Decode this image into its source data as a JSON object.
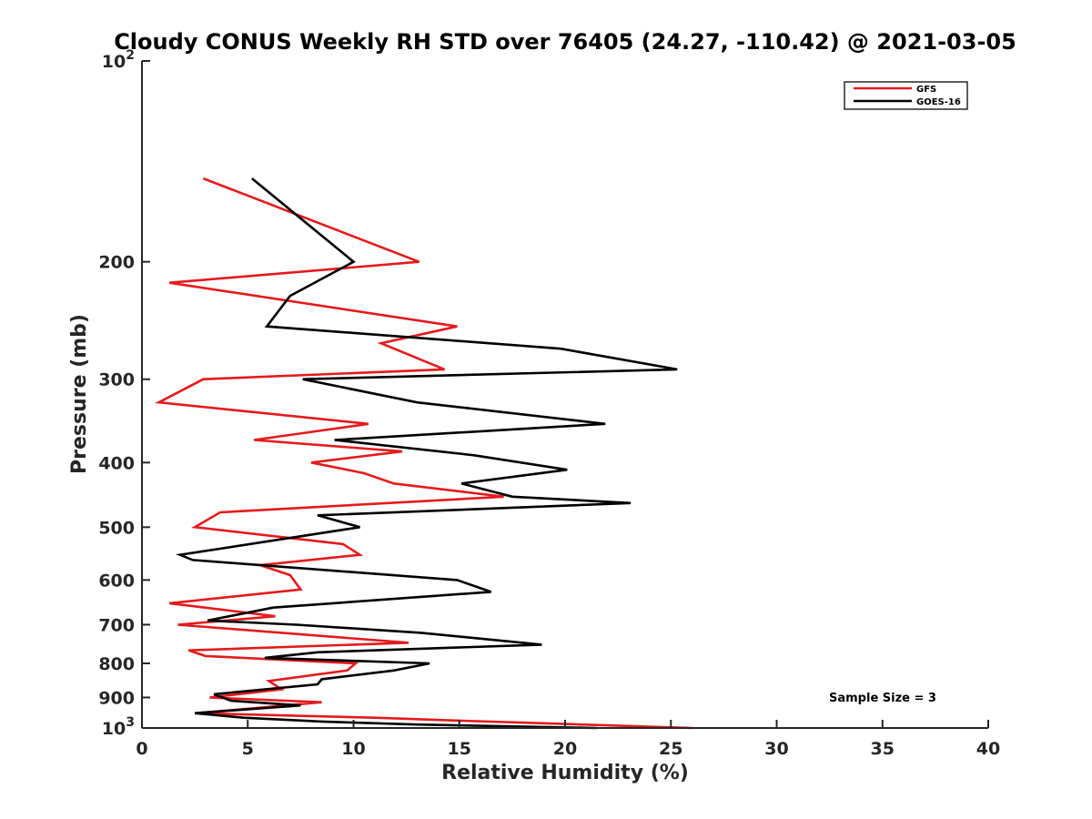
{
  "chart_data": {
    "type": "line",
    "title": "Cloudy CONUS Weekly RH STD over 76405 (24.27, -110.42) @ 2021-03-05",
    "xlabel": "Relative Humidity (%)",
    "ylabel": "Pressure (mb)",
    "xlim": [
      0,
      40
    ],
    "ylim": [
      100,
      1000
    ],
    "y_scale": "log",
    "y_inverted": true,
    "x_ticks": [
      "0",
      "5",
      "10",
      "15",
      "20",
      "25",
      "30",
      "35",
      "40"
    ],
    "y_ticks": [
      {
        "value": 100,
        "base": "10",
        "exp": "2"
      },
      {
        "value": 200,
        "label": "200"
      },
      {
        "value": 300,
        "label": "300"
      },
      {
        "value": 400,
        "label": "400"
      },
      {
        "value": 500,
        "label": "500"
      },
      {
        "value": 600,
        "label": "600"
      },
      {
        "value": 700,
        "label": "700"
      },
      {
        "value": 800,
        "label": "800"
      },
      {
        "value": 900,
        "label": "900"
      },
      {
        "value": 1000,
        "base": "10",
        "exp": "3"
      }
    ],
    "grid": false,
    "legend_position": "top-right",
    "annotation": "Sample Size = 3",
    "series": [
      {
        "name": "GFS",
        "color": "#e41a1c",
        "points": [
          [
            2.9,
            150
          ],
          [
            13.1,
            200
          ],
          [
            1.3,
            215
          ],
          [
            14.9,
            250
          ],
          [
            11.3,
            265
          ],
          [
            14.3,
            290
          ],
          [
            2.9,
            300
          ],
          [
            0.8,
            325
          ],
          [
            10.7,
            350
          ],
          [
            5.3,
            370
          ],
          [
            12.3,
            385
          ],
          [
            8.0,
            400
          ],
          [
            10.5,
            415
          ],
          [
            11.9,
            430
          ],
          [
            17.1,
            450
          ],
          [
            3.7,
            475
          ],
          [
            2.5,
            500
          ],
          [
            9.5,
            530
          ],
          [
            10.3,
            550
          ],
          [
            5.6,
            570
          ],
          [
            7.0,
            590
          ],
          [
            7.5,
            620
          ],
          [
            1.3,
            650
          ],
          [
            6.3,
            680
          ],
          [
            1.7,
            700
          ],
          [
            12.6,
            745
          ],
          [
            2.2,
            765
          ],
          [
            3.0,
            780
          ],
          [
            10.1,
            800
          ],
          [
            9.7,
            820
          ],
          [
            6.0,
            850
          ],
          [
            6.6,
            875
          ],
          [
            3.2,
            900
          ],
          [
            8.5,
            915
          ],
          [
            2.6,
            950
          ],
          [
            11.0,
            965
          ],
          [
            15.0,
            975
          ],
          [
            19.5,
            985
          ],
          [
            23.0,
            993
          ],
          [
            26.0,
            1000
          ]
        ]
      },
      {
        "name": "GOES-16",
        "color": "#000000",
        "points": [
          [
            5.2,
            150
          ],
          [
            10.0,
            200
          ],
          [
            7.0,
            225
          ],
          [
            5.9,
            250
          ],
          [
            19.8,
            270
          ],
          [
            25.3,
            290
          ],
          [
            7.6,
            300
          ],
          [
            13.0,
            325
          ],
          [
            21.9,
            350
          ],
          [
            9.1,
            370
          ],
          [
            15.7,
            390
          ],
          [
            20.1,
            410
          ],
          [
            15.1,
            430
          ],
          [
            17.5,
            450
          ],
          [
            23.1,
            460
          ],
          [
            8.3,
            480
          ],
          [
            10.3,
            500
          ],
          [
            1.8,
            550
          ],
          [
            2.4,
            560
          ],
          [
            14.9,
            600
          ],
          [
            16.5,
            625
          ],
          [
            6.2,
            660
          ],
          [
            3.1,
            690
          ],
          [
            7.3,
            700
          ],
          [
            13.2,
            720
          ],
          [
            18.9,
            750
          ],
          [
            8.3,
            770
          ],
          [
            5.8,
            785
          ],
          [
            13.6,
            800
          ],
          [
            11.9,
            820
          ],
          [
            8.5,
            845
          ],
          [
            8.3,
            860
          ],
          [
            3.4,
            890
          ],
          [
            4.2,
            910
          ],
          [
            7.5,
            925
          ],
          [
            2.5,
            950
          ],
          [
            4.8,
            965
          ],
          [
            8.5,
            978
          ],
          [
            13.0,
            988
          ],
          [
            21.5,
            1000
          ]
        ]
      }
    ]
  }
}
